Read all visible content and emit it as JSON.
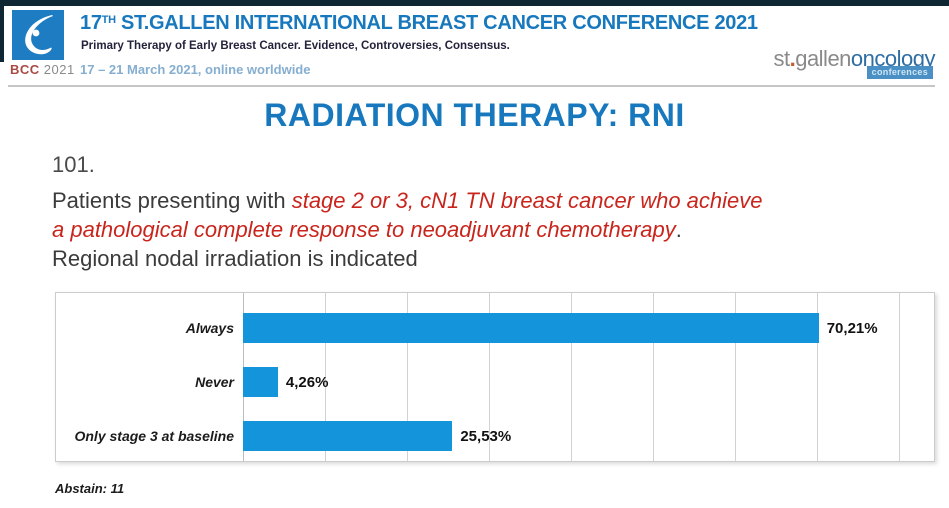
{
  "colors": {
    "top_strip": "#0f2733",
    "title_blue": "#1878be",
    "question_red": "#c9251c",
    "bar_blue": "#1495db"
  },
  "header": {
    "logo": {
      "bcc": "BCC",
      "year": "2021"
    },
    "title_num": "17",
    "title_sup": "TH",
    "title_rest": " ST.GALLEN INTERNATIONAL BREAST CANCER CONFERENCE 2021",
    "subtitle": "Primary Therapy of Early Breast Cancer. Evidence, Controversies, Consensus.",
    "dates": "17 – 21 March 2021, online worldwide",
    "brand": {
      "st": "st",
      "dot": ".",
      "gallen": "gallen",
      "oncology": "oncology",
      "badge": "conferences"
    }
  },
  "slide": {
    "title": "RADIATION THERAPY: RNI",
    "question_number": "101.",
    "line1_black": "Patients presenting with ",
    "line1_red": "stage 2 or 3, cN1 TN breast cancer who achieve",
    "line2_red": "a pathological complete response to neoadjuvant chemotherapy",
    "line2_black": ".",
    "line3": "Regional nodal irradiation is indicated"
  },
  "chart_data": {
    "type": "bar",
    "orientation": "horizontal",
    "categories": [
      "Always",
      "Never",
      "Only stage 3 at baseline"
    ],
    "values": [
      70.21,
      4.26,
      25.53
    ],
    "value_labels": [
      "70,21%",
      "4,26%",
      "25,53%"
    ],
    "xlim": [
      0,
      80
    ],
    "gridline_interval": 10,
    "grid": true,
    "legend": false,
    "bar_color": "#1495db",
    "title": "",
    "xlabel": "",
    "ylabel": ""
  },
  "footer": {
    "abstain": "Abstain: 11"
  }
}
